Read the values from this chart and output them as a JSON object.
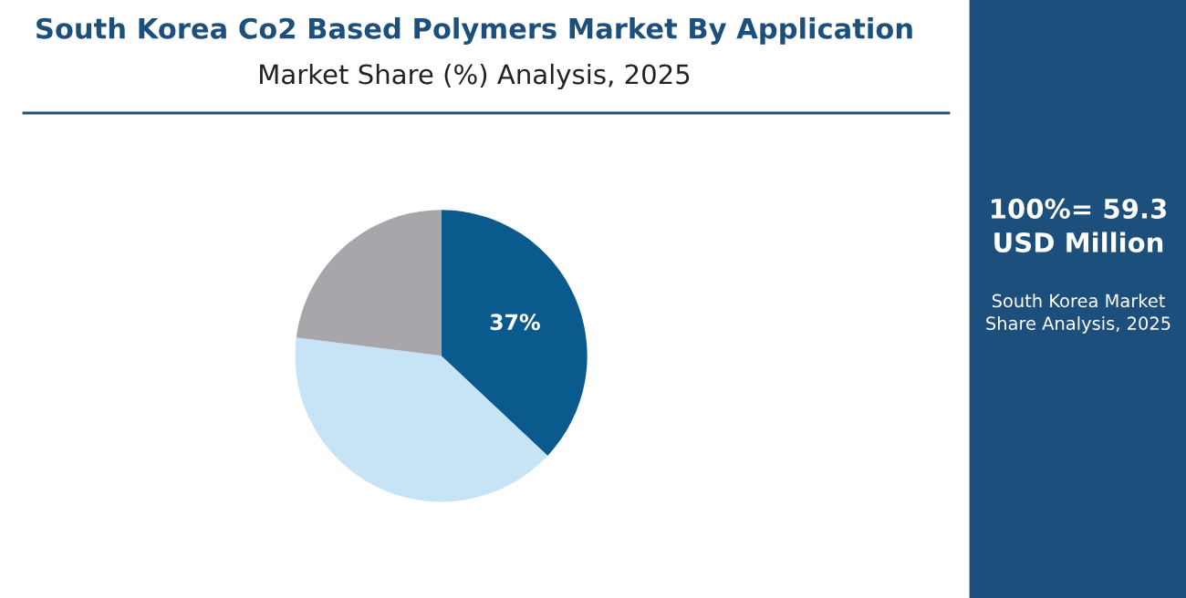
{
  "chart_data": {
    "type": "pie",
    "title": "South Korea Co2 Based Polymers Market By Application",
    "subtitle": "Market Share (%) Analysis, 2025",
    "categories": [
      null,
      null,
      null
    ],
    "values": [
      37,
      40,
      23
    ],
    "colors": [
      "#0b5a8e",
      "#c6e4f6",
      "#a7a6aa"
    ],
    "value_labels": [
      "37%",
      null,
      null
    ],
    "annotations": [
      "100%= 59.3 USD Million",
      "South Korea Market Share Analysis, 2025"
    ]
  }
}
